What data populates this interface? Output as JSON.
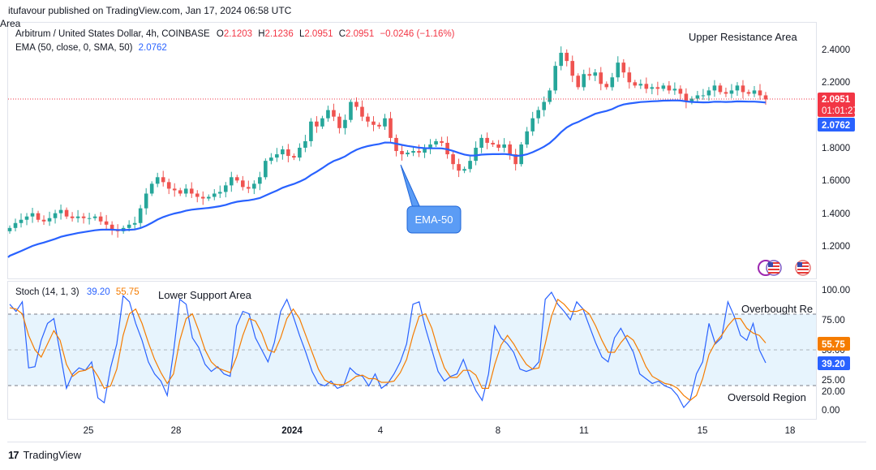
{
  "header": {
    "published_line": "itufavour published on TradingView.com, Jan 17, 2024 06:58 UTC",
    "area_fragment": "Area"
  },
  "price_pane": {
    "symbol_line": "Arbitrum / United States Dollar, 4h, COINBASE",
    "ohlc": {
      "o_label": "O",
      "o": "2.1203",
      "h_label": "H",
      "h": "2.1236",
      "l_label": "L",
      "l": "2.0951",
      "c_label": "C",
      "c": "2.0951",
      "change": "−0.0246 (−1.16%)"
    },
    "ema_label": "EMA (50, close, 0, SMA, 50)",
    "ema_value": "2.0762",
    "annotation_resistance": "Upper Resistance Area",
    "callout_ema": "EMA-50",
    "price_axis": [
      "2.4000",
      "2.2000",
      "1.8000",
      "1.6000",
      "1.4000",
      "1.2000"
    ],
    "last_price_badge": "2.0951",
    "countdown_badge": "01:01:27",
    "ema_badge": "2.0762",
    "colors": {
      "up": "#26a69a",
      "down": "#ef5350",
      "ema": "#2962ff",
      "price_line": "#f23645"
    }
  },
  "stoch_pane": {
    "label": "Stoch (14, 1, 3)",
    "k_value": "39.20",
    "d_value": "55.75",
    "annotation_support": "Lower Support Area",
    "annotation_overbought": "Overbought Re",
    "annotation_oversold": "Oversold Region",
    "axis": [
      "100.00",
      "75.00",
      "50.00",
      "25.00",
      "0.00"
    ],
    "axis_hidden_label": "20.00",
    "k_badge": "39.20",
    "d_badge": "55.75",
    "colors": {
      "k": "#2962ff",
      "d": "#f57c00",
      "band": "#e3f2fd"
    }
  },
  "time_axis": [
    "25",
    "28",
    "2024",
    "4",
    "8",
    "11",
    "15",
    "18"
  ],
  "footer": {
    "logo_text": "TradingView",
    "logo_icon": "tradingview-logo-icon"
  },
  "icons": [
    "us-flag-icon",
    "us-flag-icon"
  ],
  "chart_data": [
    {
      "type": "candlestick",
      "title": "Arbitrum / United States Dollar, 4h, COINBASE",
      "ylim": [
        1.12,
        2.48
      ],
      "x_ticks": [
        "25",
        "28",
        "2024",
        "4",
        "8",
        "11",
        "15",
        "18"
      ],
      "close_series": [
        1.31,
        1.34,
        1.36,
        1.38,
        1.4,
        1.36,
        1.35,
        1.37,
        1.4,
        1.42,
        1.38,
        1.37,
        1.38,
        1.37,
        1.37,
        1.38,
        1.35,
        1.33,
        1.3,
        1.29,
        1.31,
        1.33,
        1.34,
        1.43,
        1.52,
        1.58,
        1.62,
        1.59,
        1.55,
        1.54,
        1.52,
        1.55,
        1.52,
        1.5,
        1.49,
        1.5,
        1.52,
        1.53,
        1.57,
        1.62,
        1.6,
        1.56,
        1.55,
        1.58,
        1.62,
        1.72,
        1.74,
        1.76,
        1.79,
        1.75,
        1.74,
        1.8,
        1.84,
        1.96,
        1.93,
        1.98,
        2.03,
        1.99,
        1.92,
        1.97,
        2.08,
        2.05,
        1.99,
        1.96,
        1.94,
        1.93,
        1.98,
        1.86,
        1.78,
        1.76,
        1.77,
        1.78,
        1.77,
        1.8,
        1.82,
        1.84,
        1.83,
        1.76,
        1.7,
        1.66,
        1.67,
        1.72,
        1.8,
        1.86,
        1.83,
        1.82,
        1.8,
        1.82,
        1.76,
        1.7,
        1.82,
        1.9,
        1.98,
        2.03,
        2.08,
        2.15,
        2.3,
        2.38,
        2.33,
        2.24,
        2.17,
        2.25,
        2.24,
        2.26,
        2.19,
        2.17,
        2.23,
        2.32,
        2.26,
        2.2,
        2.18,
        2.19,
        2.16,
        2.17,
        2.16,
        2.18,
        2.15,
        2.16,
        2.13,
        2.08,
        2.1,
        2.12,
        2.12,
        2.15,
        2.18,
        2.14,
        2.13,
        2.15,
        2.18,
        2.14,
        2.13,
        2.15,
        2.12,
        2.0951
      ],
      "ema_50": {
        "name": "EMA-50",
        "value": 2.0762
      },
      "last_price": 2.0951
    },
    {
      "type": "line",
      "title": "Stoch (14, 1, 3)",
      "ylim": [
        0,
        100
      ],
      "y_ticks": [
        100,
        75,
        50,
        25,
        0
      ],
      "band": [
        20,
        80
      ],
      "series": [
        {
          "name": "%K",
          "last": 39.2,
          "values": [
            88,
            82,
            90,
            35,
            36,
            58,
            72,
            76,
            48,
            18,
            30,
            35,
            33,
            40,
            10,
            6,
            35,
            55,
            95,
            90,
            72,
            58,
            40,
            30,
            24,
            12,
            48,
            92,
            88,
            60,
            52,
            38,
            32,
            36,
            30,
            28,
            70,
            82,
            80,
            60,
            50,
            40,
            56,
            82,
            92,
            78,
            62,
            48,
            32,
            22,
            20,
            24,
            18,
            20,
            35,
            30,
            28,
            20,
            30,
            18,
            22,
            30,
            40,
            55,
            88,
            90,
            68,
            50,
            32,
            24,
            28,
            30,
            42,
            28,
            16,
            8,
            30,
            70,
            60,
            55,
            48,
            34,
            32,
            34,
            40,
            92,
            98,
            88,
            82,
            75,
            90,
            84,
            70,
            56,
            44,
            40,
            60,
            68,
            58,
            48,
            30,
            26,
            22,
            24,
            20,
            18,
            12,
            2,
            8,
            30,
            40,
            72,
            55,
            60,
            90,
            78,
            62,
            58,
            72,
            50,
            39.2
          ]
        },
        {
          "name": "%D",
          "last": 55.75,
          "values": [
            85,
            84,
            80,
            62,
            50,
            44,
            55,
            66,
            58,
            38,
            28,
            32,
            33,
            36,
            28,
            18,
            20,
            34,
            62,
            80,
            84,
            72,
            56,
            42,
            31,
            22,
            30,
            58,
            76,
            80,
            66,
            50,
            40,
            35,
            33,
            31,
            44,
            62,
            76,
            74,
            64,
            50,
            48,
            60,
            76,
            84,
            76,
            62,
            48,
            34,
            25,
            22,
            21,
            21,
            24,
            28,
            29,
            26,
            26,
            23,
            23,
            24,
            31,
            42,
            62,
            78,
            80,
            68,
            50,
            35,
            27,
            27,
            33,
            33,
            29,
            18,
            18,
            38,
            54,
            62,
            55,
            46,
            38,
            34,
            35,
            55,
            78,
            92,
            88,
            82,
            82,
            84,
            80,
            70,
            58,
            48,
            48,
            56,
            62,
            58,
            48,
            36,
            28,
            25,
            22,
            21,
            18,
            12,
            8,
            12,
            26,
            46,
            56,
            62,
            70,
            76,
            76,
            68,
            64,
            62,
            55.75
          ]
        }
      ]
    }
  ]
}
